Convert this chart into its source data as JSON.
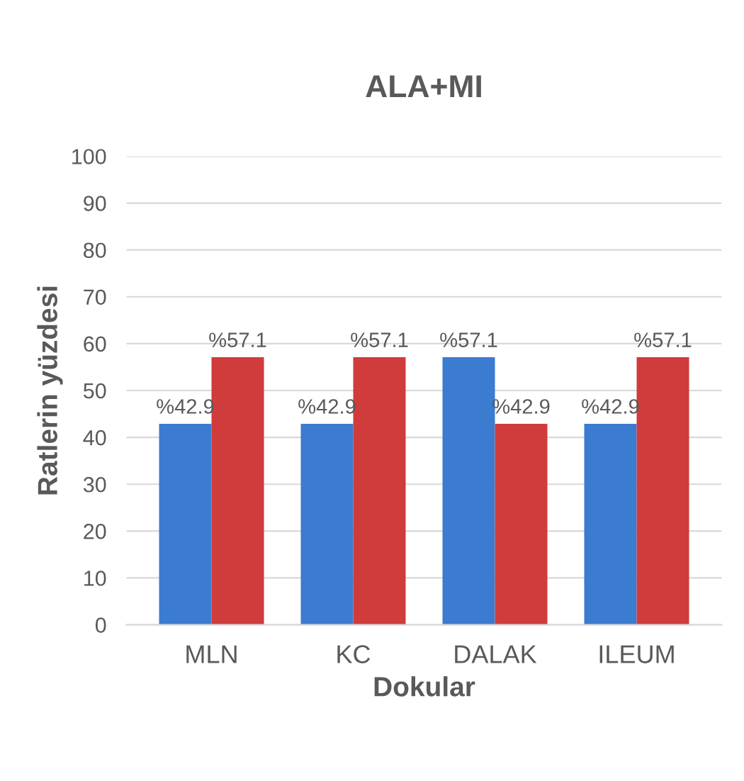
{
  "chart_data": {
    "type": "bar",
    "title": "ALA+MI",
    "xlabel": "Dokular",
    "ylabel": "Ratlerin yüzdesi",
    "categories": [
      "MLN",
      "KC",
      "DALAK",
      "ILEUM"
    ],
    "series": [
      {
        "color": "#3b7bd0",
        "values": [
          42.9,
          42.9,
          57.1,
          42.9
        ],
        "value_labels": [
          "%42.9",
          "%42.9",
          "%57.1",
          "%42.9"
        ]
      },
      {
        "color": "#d03b3b",
        "values": [
          57.1,
          57.1,
          42.9,
          57.1
        ],
        "value_labels": [
          "%57.1",
          "%57.1",
          "%42.9",
          "%57.1"
        ]
      }
    ],
    "ylim": [
      0,
      100
    ],
    "yticks": [
      0,
      10,
      20,
      30,
      40,
      50,
      60,
      70,
      80,
      90,
      100
    ],
    "grid": "y",
    "legend": false
  }
}
